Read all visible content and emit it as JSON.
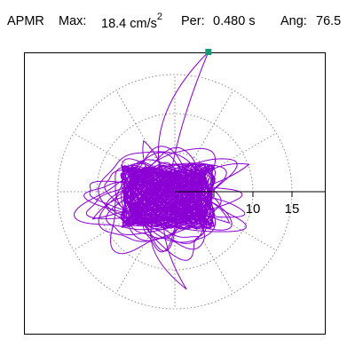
{
  "header": {
    "component": "APMR",
    "max_label": "Max:",
    "max_value": "18.4",
    "max_unit": "cm/s",
    "max_exponent": "2",
    "period_label": "Per:",
    "period_value": "0.480 s",
    "angle_label": "Ang:",
    "angle_value": "76.5"
  },
  "colors": {
    "trace": "#8a00d4",
    "marker": "#11997a",
    "grid": "#8c8c8c",
    "axis": "#000000",
    "frame": "#000000"
  },
  "chart_data": {
    "type": "scatter",
    "plot_style": "polar particle-motion orbit",
    "radial_unit": "cm/s2",
    "radial_ticks": [
      5,
      10,
      15
    ],
    "radial_tick_labels": [
      "10",
      "15"
    ],
    "radial_max": 20,
    "grid": true,
    "grid_circles": [
      5,
      10,
      15
    ],
    "grid_spokes_deg": [
      0,
      30,
      60,
      90,
      120,
      150,
      180,
      210,
      240,
      270,
      300,
      330
    ],
    "peak": {
      "magnitude": 18.4,
      "angle_deg": 76.5,
      "period_s": 0.48
    },
    "center_offset": {
      "x": -0.9,
      "y": -0.6
    },
    "lobes": [
      {
        "a": 7.5,
        "b": 3.2,
        "rot": 20,
        "cx": 0.0,
        "cy": 0.0
      },
      {
        "a": 8.5,
        "b": 2.6,
        "rot": -18,
        "cx": -0.5,
        "cy": -0.8
      },
      {
        "a": 6.0,
        "b": 4.0,
        "rot": 60,
        "cx": -1.0,
        "cy": 0.3
      },
      {
        "a": 9.5,
        "b": 2.2,
        "rot": 5,
        "cx": -0.8,
        "cy": -0.4
      },
      {
        "a": 7.0,
        "b": 3.5,
        "rot": -55,
        "cx": -0.3,
        "cy": -1.5
      },
      {
        "a": 5.5,
        "b": 3.0,
        "rot": 100,
        "cx": -1.2,
        "cy": -0.6
      },
      {
        "a": 8.0,
        "b": 4.5,
        "rot": 35,
        "cx": -0.6,
        "cy": -0.2
      },
      {
        "a": 10.0,
        "b": 1.8,
        "rot": -8,
        "cx": -0.9,
        "cy": -0.7
      },
      {
        "a": 6.5,
        "b": 2.4,
        "rot": 140,
        "cx": -0.2,
        "cy": -0.9
      },
      {
        "a": 7.5,
        "b": 5.0,
        "rot": -30,
        "cx": -1.1,
        "cy": 0.1
      },
      {
        "a": 4.5,
        "b": 2.5,
        "rot": 80,
        "cx": -0.7,
        "cy": -2.0
      },
      {
        "a": 9.0,
        "b": 3.8,
        "rot": 12,
        "cx": -1.6,
        "cy": -0.3
      },
      {
        "a": 6.0,
        "b": 5.0,
        "rot": -70,
        "cx": -0.4,
        "cy": -0.5
      },
      {
        "a": 8.8,
        "b": 2.9,
        "rot": 28,
        "cx": 0.4,
        "cy": -0.3
      },
      {
        "a": 7.2,
        "b": 3.0,
        "rot": -42,
        "cx": -1.4,
        "cy": -1.1
      },
      {
        "a": 5.0,
        "b": 4.2,
        "rot": 165,
        "cx": -0.6,
        "cy": 0.6
      },
      {
        "a": 9.8,
        "b": 2.5,
        "rot": -12,
        "cx": -0.1,
        "cy": -1.2
      },
      {
        "a": 6.8,
        "b": 4.6,
        "rot": 48,
        "cx": -1.8,
        "cy": -0.8
      }
    ],
    "excursions": [
      {
        "type": "peak",
        "to": [
          4.3,
          17.9
        ],
        "via": [
          -2.5,
          8.0
        ]
      },
      {
        "type": "loop",
        "to": [
          1.5,
          -12.5
        ],
        "via": [
          -4.5,
          -6.0
        ]
      },
      {
        "type": "loop",
        "to": [
          -10.5,
          -3.5
        ],
        "via": [
          -7.0,
          -1.0
        ]
      },
      {
        "type": "loop",
        "to": [
          7.0,
          -4.0
        ],
        "via": [
          4.5,
          -1.5
        ]
      },
      {
        "type": "loop",
        "to": [
          -4.0,
          6.5
        ],
        "via": [
          -3.0,
          3.5
        ]
      },
      {
        "type": "loop",
        "to": [
          9.5,
          3.5
        ],
        "via": [
          5.5,
          2.5
        ]
      }
    ]
  }
}
